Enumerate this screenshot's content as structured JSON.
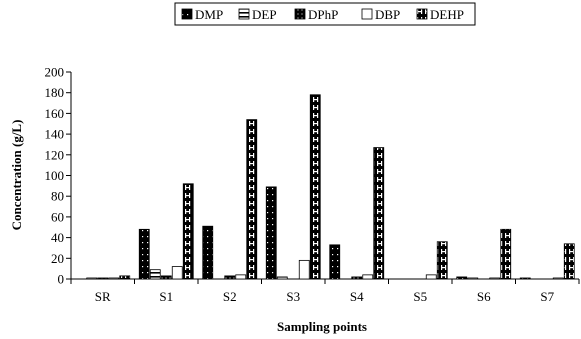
{
  "chart_data": {
    "type": "bar",
    "title": "",
    "xlabel": "Sampling points",
    "ylabel": "Concentration (g/L)",
    "ylim": [
      0,
      200
    ],
    "yticks": [
      0,
      20,
      40,
      60,
      80,
      100,
      120,
      140,
      160,
      180,
      200
    ],
    "categories": [
      "SR",
      "S1",
      "S2",
      "S3",
      "S4",
      "S5",
      "S6",
      "S7"
    ],
    "series": [
      {
        "name": "DMP",
        "values": [
          0,
          48,
          51,
          89,
          33,
          0,
          2,
          1
        ],
        "fill": "#000000",
        "pattern": "dots"
      },
      {
        "name": "DEP",
        "values": [
          1,
          9,
          0,
          2,
          0,
          0,
          1,
          0
        ],
        "fill": "#ffffff",
        "pattern": "hstripes"
      },
      {
        "name": "DPhP",
        "values": [
          1,
          3,
          3,
          0,
          2,
          0,
          0,
          0
        ],
        "fill": "#000000",
        "pattern": "grid"
      },
      {
        "name": "DBP",
        "values": [
          1,
          12,
          4,
          18,
          4,
          4,
          1,
          1
        ],
        "fill": "#ffffff",
        "pattern": "none"
      },
      {
        "name": "DEHP",
        "values": [
          3,
          92,
          154,
          178,
          127,
          36,
          48,
          34
        ],
        "fill": "#000000",
        "pattern": "brick"
      }
    ],
    "grid": false,
    "legend_position": "top-center"
  }
}
